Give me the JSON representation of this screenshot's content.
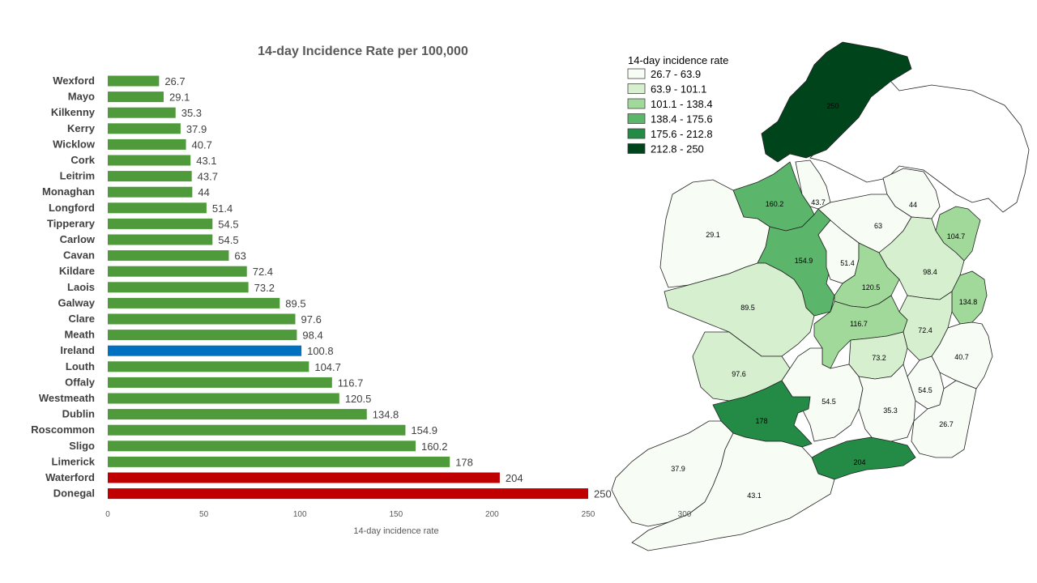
{
  "chart_data": [
    {
      "type": "bar",
      "orientation": "horizontal",
      "title": "14-day Incidence Rate per 100,000",
      "xlabel": "14-day incidence rate",
      "ylabel": "",
      "xlim": [
        0,
        250
      ],
      "xticks": [
        0,
        50,
        100,
        150,
        200,
        250
      ],
      "grid": false,
      "categories": [
        "Wexford",
        "Mayo",
        "Kilkenny",
        "Kerry",
        "Wicklow",
        "Cork",
        "Leitrim",
        "Monaghan",
        "Longford",
        "Tipperary",
        "Carlow",
        "Cavan",
        "Kildare",
        "Laois",
        "Galway",
        "Clare",
        "Meath",
        "Ireland",
        "Louth",
        "Offaly",
        "Westmeath",
        "Dublin",
        "Roscommon",
        "Sligo",
        "Limerick",
        "Waterford",
        "Donegal"
      ],
      "values": [
        26.7,
        29.1,
        35.3,
        37.9,
        40.7,
        43.1,
        43.7,
        44,
        51.4,
        54.5,
        54.5,
        63,
        72.4,
        73.2,
        89.5,
        97.6,
        98.4,
        100.8,
        104.7,
        116.7,
        120.5,
        134.8,
        154.9,
        160.2,
        178,
        204,
        250
      ],
      "bar_colors": [
        "#4f9a3a",
        "#4f9a3a",
        "#4f9a3a",
        "#4f9a3a",
        "#4f9a3a",
        "#4f9a3a",
        "#4f9a3a",
        "#4f9a3a",
        "#4f9a3a",
        "#4f9a3a",
        "#4f9a3a",
        "#4f9a3a",
        "#4f9a3a",
        "#4f9a3a",
        "#4f9a3a",
        "#4f9a3a",
        "#4f9a3a",
        "#0070c0",
        "#4f9a3a",
        "#4f9a3a",
        "#4f9a3a",
        "#4f9a3a",
        "#4f9a3a",
        "#4f9a3a",
        "#4f9a3a",
        "#c00000",
        "#c00000"
      ]
    },
    {
      "type": "choropleth",
      "legend_title": "14-day incidence rate",
      "legend_placement": "top-left",
      "classes": [
        {
          "label": "26.7 - 63.9",
          "color": "#f7fcf5"
        },
        {
          "label": "63.9 - 101.1",
          "color": "#d5efcf"
        },
        {
          "label": "101.1 - 138.4",
          "color": "#a1d99b"
        },
        {
          "label": "138.4 - 175.6",
          "color": "#5bb56b"
        },
        {
          "label": "175.6 - 212.8",
          "color": "#238b45"
        },
        {
          "label": "212.8 - 250",
          "color": "#00441b"
        }
      ],
      "regions": [
        {
          "name": "Donegal",
          "value": 250,
          "label": "250",
          "class": 5
        },
        {
          "name": "Sligo",
          "value": 160.2,
          "label": "160.2",
          "class": 3
        },
        {
          "name": "Leitrim",
          "value": 43.7,
          "label": "43.7",
          "class": 0
        },
        {
          "name": "Monaghan",
          "value": 44,
          "label": "44",
          "class": 0
        },
        {
          "name": "Cavan",
          "value": 63,
          "label": "63",
          "class": 0
        },
        {
          "name": "Mayo",
          "value": 29.1,
          "label": "29.1",
          "class": 0
        },
        {
          "name": "Roscommon",
          "value": 154.9,
          "label": "154.9",
          "class": 3
        },
        {
          "name": "Longford",
          "value": 51.4,
          "label": "51.4",
          "class": 0
        },
        {
          "name": "Louth",
          "value": 104.7,
          "label": "104.7",
          "class": 2
        },
        {
          "name": "Meath",
          "value": 98.4,
          "label": "98.4",
          "class": 1
        },
        {
          "name": "Westmeath",
          "value": 120.5,
          "label": "120.5",
          "class": 2
        },
        {
          "name": "Dublin",
          "value": 134.8,
          "label": "134.8",
          "class": 2
        },
        {
          "name": "Galway",
          "value": 89.5,
          "label": "89.5",
          "class": 1
        },
        {
          "name": "Offaly",
          "value": 116.7,
          "label": "116.7",
          "class": 2
        },
        {
          "name": "Kildare",
          "value": 72.4,
          "label": "72.4",
          "class": 1
        },
        {
          "name": "Laois",
          "value": 73.2,
          "label": "73.2",
          "class": 1
        },
        {
          "name": "Wicklow",
          "value": 40.7,
          "label": "40.7",
          "class": 0
        },
        {
          "name": "Clare",
          "value": 97.6,
          "label": "97.6",
          "class": 1
        },
        {
          "name": "Tipperary",
          "value": 54.5,
          "label": "54.5",
          "class": 0
        },
        {
          "name": "Carlow",
          "value": 54.5,
          "label": "54.5",
          "class": 0
        },
        {
          "name": "Kilkenny",
          "value": 35.3,
          "label": "35.3",
          "class": 0
        },
        {
          "name": "Wexford",
          "value": 26.7,
          "label": "26.7",
          "class": 0
        },
        {
          "name": "Limerick",
          "value": 178,
          "label": "178",
          "class": 4
        },
        {
          "name": "Waterford",
          "value": 204,
          "label": "204",
          "class": 4
        },
        {
          "name": "Kerry",
          "value": 37.9,
          "label": "37.9",
          "class": 0
        },
        {
          "name": "Cork",
          "value": 43.1,
          "label": "43.1",
          "class": 0
        }
      ],
      "stray_labels": [
        "300"
      ]
    }
  ]
}
